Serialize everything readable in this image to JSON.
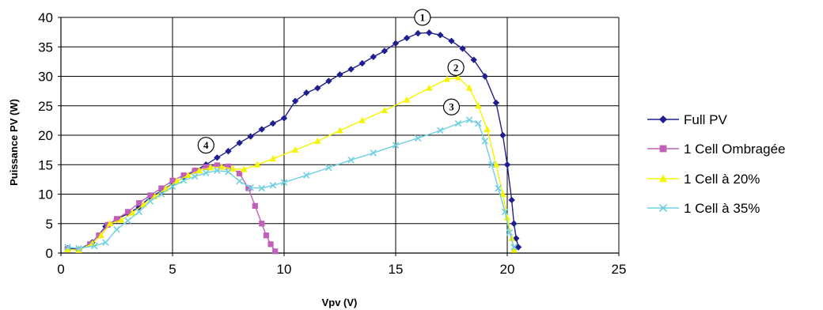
{
  "chart_data": {
    "type": "line",
    "xlabel": "Vpv (V)",
    "ylabel": "Puissance PV (W)",
    "xlim": [
      0,
      25
    ],
    "ylim": [
      0,
      40
    ],
    "xticks": [
      0,
      5,
      10,
      15,
      20,
      25
    ],
    "yticks": [
      0,
      5,
      10,
      15,
      20,
      25,
      30,
      35,
      40
    ],
    "grid": true,
    "legend_position": "right",
    "series": [
      {
        "name": "Full PV",
        "color": "#1f1f8f",
        "marker": "diamond",
        "points": [
          [
            0.3,
            0.8
          ],
          [
            0.8,
            0.6
          ],
          [
            1.4,
            1.8
          ],
          [
            2.0,
            4.5
          ],
          [
            2.5,
            5.7
          ],
          [
            3.0,
            6.7
          ],
          [
            3.5,
            7.8
          ],
          [
            4.0,
            9.5
          ],
          [
            4.5,
            10.5
          ],
          [
            5.0,
            11.8
          ],
          [
            5.5,
            12.8
          ],
          [
            6.0,
            14.0
          ],
          [
            6.5,
            15.0
          ],
          [
            7.0,
            16.2
          ],
          [
            7.5,
            17.3
          ],
          [
            8.0,
            18.7
          ],
          [
            8.5,
            19.8
          ],
          [
            9.0,
            21.0
          ],
          [
            9.5,
            22.0
          ],
          [
            10.0,
            22.9
          ],
          [
            10.5,
            25.8
          ],
          [
            11.0,
            27.2
          ],
          [
            11.5,
            28.0
          ],
          [
            12.0,
            29.2
          ],
          [
            12.5,
            30.3
          ],
          [
            13.0,
            31.2
          ],
          [
            13.5,
            32.2
          ],
          [
            14.0,
            33.3
          ],
          [
            14.5,
            34.3
          ],
          [
            15.0,
            35.6
          ],
          [
            15.5,
            36.5
          ],
          [
            16.0,
            37.3
          ],
          [
            16.5,
            37.4
          ],
          [
            17.0,
            37.0
          ],
          [
            17.5,
            36.0
          ],
          [
            18.0,
            34.7
          ],
          [
            18.5,
            32.8
          ],
          [
            19.0,
            30.0
          ],
          [
            19.5,
            25.5
          ],
          [
            19.8,
            20.0
          ],
          [
            20.0,
            15.0
          ],
          [
            20.2,
            9.0
          ],
          [
            20.3,
            5.0
          ],
          [
            20.4,
            2.5
          ],
          [
            20.5,
            1.0
          ]
        ]
      },
      {
        "name": "1 Cell Ombragée",
        "color": "#c060b8",
        "marker": "square",
        "points": [
          [
            0.3,
            0.7
          ],
          [
            0.8,
            0.5
          ],
          [
            1.3,
            1.5
          ],
          [
            1.7,
            3.0
          ],
          [
            2.1,
            4.8
          ],
          [
            2.5,
            5.8
          ],
          [
            3.0,
            7.0
          ],
          [
            3.5,
            8.5
          ],
          [
            4.0,
            9.8
          ],
          [
            4.5,
            11.0
          ],
          [
            5.0,
            12.3
          ],
          [
            5.5,
            13.2
          ],
          [
            6.0,
            14.0
          ],
          [
            6.5,
            14.6
          ],
          [
            7.0,
            14.9
          ],
          [
            7.5,
            14.7
          ],
          [
            8.0,
            13.5
          ],
          [
            8.4,
            11.0
          ],
          [
            8.7,
            8.0
          ],
          [
            9.0,
            5.0
          ],
          [
            9.2,
            3.0
          ],
          [
            9.4,
            1.5
          ],
          [
            9.6,
            0.3
          ]
        ]
      },
      {
        "name": "1 Cell à 20%",
        "color": "#f5f500",
        "marker": "triangle",
        "points": [
          [
            0.3,
            0.6
          ],
          [
            0.8,
            0.5
          ],
          [
            1.4,
            1.6
          ],
          [
            1.8,
            3.0
          ],
          [
            2.2,
            5.0
          ],
          [
            2.7,
            5.6
          ],
          [
            3.2,
            6.8
          ],
          [
            3.7,
            8.2
          ],
          [
            4.2,
            9.6
          ],
          [
            4.7,
            10.9
          ],
          [
            5.2,
            12.2
          ],
          [
            5.7,
            13.2
          ],
          [
            6.2,
            14.0
          ],
          [
            6.7,
            14.5
          ],
          [
            7.2,
            14.6
          ],
          [
            7.7,
            14.3
          ],
          [
            8.2,
            14.2
          ],
          [
            8.8,
            15.0
          ],
          [
            9.5,
            16.0
          ],
          [
            10.5,
            17.5
          ],
          [
            11.5,
            19.0
          ],
          [
            12.5,
            20.8
          ],
          [
            13.5,
            22.5
          ],
          [
            14.5,
            24.2
          ],
          [
            15.5,
            26.0
          ],
          [
            16.5,
            28.0
          ],
          [
            17.3,
            29.5
          ],
          [
            17.8,
            29.8
          ],
          [
            18.3,
            28.0
          ],
          [
            18.7,
            25.0
          ],
          [
            19.1,
            21.0
          ],
          [
            19.5,
            15.0
          ],
          [
            19.8,
            10.0
          ],
          [
            20.0,
            6.0
          ],
          [
            20.2,
            2.5
          ],
          [
            20.3,
            0.5
          ]
        ]
      },
      {
        "name": "1 Cell à 35%",
        "color": "#70d0e0",
        "marker": "x",
        "points": [
          [
            0.3,
            1.0
          ],
          [
            0.8,
            0.8
          ],
          [
            1.5,
            1.2
          ],
          [
            2.0,
            1.8
          ],
          [
            2.5,
            4.0
          ],
          [
            3.0,
            5.5
          ],
          [
            3.5,
            7.0
          ],
          [
            4.0,
            8.8
          ],
          [
            4.5,
            10.0
          ],
          [
            5.0,
            11.3
          ],
          [
            5.5,
            12.3
          ],
          [
            6.0,
            13.0
          ],
          [
            6.5,
            13.6
          ],
          [
            7.0,
            14.0
          ],
          [
            7.5,
            13.8
          ],
          [
            8.0,
            12.2
          ],
          [
            8.5,
            11.1
          ],
          [
            9.0,
            11.0
          ],
          [
            9.5,
            11.5
          ],
          [
            10.0,
            12.0
          ],
          [
            11.0,
            13.2
          ],
          [
            12.0,
            14.5
          ],
          [
            13.0,
            15.8
          ],
          [
            14.0,
            17.0
          ],
          [
            15.0,
            18.3
          ],
          [
            16.0,
            19.5
          ],
          [
            17.0,
            20.8
          ],
          [
            17.8,
            22.0
          ],
          [
            18.3,
            22.6
          ],
          [
            18.7,
            22.0
          ],
          [
            19.0,
            19.0
          ],
          [
            19.3,
            15.0
          ],
          [
            19.6,
            11.0
          ],
          [
            19.9,
            7.0
          ],
          [
            20.1,
            3.5
          ],
          [
            20.3,
            1.0
          ]
        ]
      }
    ],
    "annotations": [
      {
        "label": "1",
        "x": 16.2,
        "y": 40.0
      },
      {
        "label": "2",
        "x": 17.7,
        "y": 31.5
      },
      {
        "label": "3",
        "x": 17.5,
        "y": 24.8
      },
      {
        "label": "4",
        "x": 6.5,
        "y": 18.3
      }
    ]
  }
}
